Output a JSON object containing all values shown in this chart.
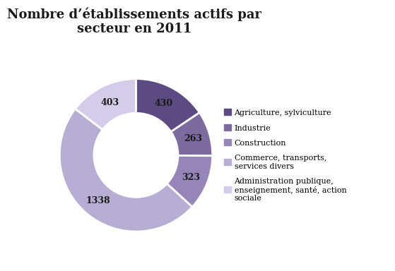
{
  "title": "Nombre d’établissements actifs par\nsecteur en 2011",
  "values": [
    430,
    263,
    323,
    1338,
    403
  ],
  "labels": [
    "Agriculture, sylviculture",
    "Industrie",
    "Construction",
    "Commerce, transports,\nservices divers",
    "Administration publique,\nenseignement, santé, action\nsociale"
  ],
  "colors": [
    "#5c4a82",
    "#7b6b9e",
    "#9585b8",
    "#b8aed4",
    "#d4cce8"
  ],
  "background_color": "#ffffff",
  "title_fontsize": 13,
  "label_fontsize": 9,
  "legend_fontsize": 8
}
